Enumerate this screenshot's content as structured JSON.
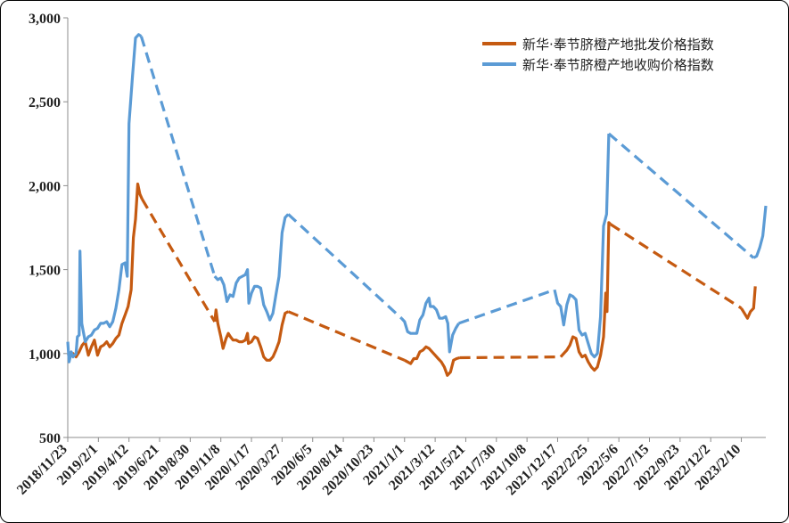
{
  "chart_data": {
    "type": "line",
    "title": "",
    "xlabel": "",
    "ylabel": "",
    "ylim": [
      500,
      3000
    ],
    "yticks": [
      500,
      1000,
      1500,
      2000,
      2500,
      3000
    ],
    "ytick_labels": [
      "500",
      "1,000",
      "1,500",
      "2,000",
      "2,500",
      "3,000"
    ],
    "xtick_labels": [
      "2018/11/23",
      "2019/2/1",
      "2019/4/12",
      "2019/6/21",
      "2019/8/30",
      "2019/11/8",
      "2020/1/17",
      "2020/3/27",
      "2020/6/5",
      "2020/8/14",
      "2020/10/23",
      "2021/1/1",
      "2021/3/12",
      "2021/5/21",
      "2021/7/30",
      "2021/10/8",
      "2021/12/17",
      "2022/2/25",
      "2022/5/6",
      "2022/7/15",
      "2022/9/23",
      "2022/12/2",
      "2023/2/10"
    ],
    "x_range": [
      "2018-11-23",
      "2023-04-07"
    ],
    "grid": false,
    "legend_position": "top-right",
    "series": [
      {
        "name": "新华·奉节脐橙产地批发价格指数",
        "color": "#C55A11",
        "points": [
          [
            "2018-11-23",
            1000
          ],
          [
            "2018-11-28",
            990
          ],
          [
            "2018-12-05",
            1000
          ],
          [
            "2018-12-12",
            980
          ],
          [
            "2018-12-19",
            1010
          ],
          [
            "2018-12-26",
            1050
          ],
          [
            "2019-01-02",
            1070
          ],
          [
            "2019-01-09",
            990
          ],
          [
            "2019-01-16",
            1040
          ],
          [
            "2019-01-23",
            1080
          ],
          [
            "2019-01-30",
            990
          ],
          [
            "2019-02-06",
            1040
          ],
          [
            "2019-02-13",
            1050
          ],
          [
            "2019-02-20",
            1070
          ],
          [
            "2019-02-27",
            1040
          ],
          [
            "2019-03-06",
            1060
          ],
          [
            "2019-03-13",
            1090
          ],
          [
            "2019-03-20",
            1110
          ],
          [
            "2019-03-27",
            1180
          ],
          [
            "2019-04-03",
            1230
          ],
          [
            "2019-04-10",
            1280
          ],
          [
            "2019-04-17",
            1380
          ],
          [
            "2019-04-22",
            1690
          ],
          [
            "2019-04-27",
            1800
          ],
          [
            "2019-05-02",
            2010
          ],
          [
            "2019-05-07",
            1950
          ],
          [
            "2019-05-12",
            1920
          ],
          [
            "2019-10-25",
            1190
          ],
          [
            "2019-10-28",
            1260
          ],
          [
            "2019-11-01",
            1180
          ],
          [
            "2019-11-08",
            1100
          ],
          [
            "2019-11-13",
            1030
          ],
          [
            "2019-11-20",
            1090
          ],
          [
            "2019-11-25",
            1120
          ],
          [
            "2019-11-30",
            1100
          ],
          [
            "2019-12-06",
            1080
          ],
          [
            "2019-12-13",
            1080
          ],
          [
            "2019-12-20",
            1070
          ],
          [
            "2019-12-27",
            1070
          ],
          [
            "2020-01-03",
            1080
          ],
          [
            "2020-01-08",
            1120
          ],
          [
            "2020-01-10",
            1060
          ],
          [
            "2020-01-17",
            1070
          ],
          [
            "2020-01-24",
            1100
          ],
          [
            "2020-01-31",
            1090
          ],
          [
            "2020-02-07",
            1040
          ],
          [
            "2020-02-14",
            980
          ],
          [
            "2020-02-21",
            960
          ],
          [
            "2020-02-28",
            960
          ],
          [
            "2020-03-06",
            980
          ],
          [
            "2020-03-13",
            1020
          ],
          [
            "2020-03-20",
            1070
          ],
          [
            "2020-03-27",
            1170
          ],
          [
            "2020-04-03",
            1240
          ],
          [
            "2020-04-10",
            1250
          ],
          [
            "2021-01-01",
            960
          ],
          [
            "2021-01-08",
            950
          ],
          [
            "2021-01-15",
            940
          ],
          [
            "2021-01-22",
            970
          ],
          [
            "2021-01-29",
            970
          ],
          [
            "2021-02-05",
            1010
          ],
          [
            "2021-02-12",
            1020
          ],
          [
            "2021-02-19",
            1040
          ],
          [
            "2021-02-26",
            1030
          ],
          [
            "2021-03-05",
            1010
          ],
          [
            "2021-03-12",
            990
          ],
          [
            "2021-03-19",
            970
          ],
          [
            "2021-03-26",
            950
          ],
          [
            "2021-04-02",
            920
          ],
          [
            "2021-04-09",
            870
          ],
          [
            "2021-04-16",
            890
          ],
          [
            "2021-04-23",
            960
          ],
          [
            "2021-04-30",
            970
          ],
          [
            "2021-05-07",
            975
          ],
          [
            "2021-12-24",
            980
          ],
          [
            "2021-12-31",
            1000
          ],
          [
            "2022-01-07",
            1020
          ],
          [
            "2022-01-14",
            1050
          ],
          [
            "2022-01-21",
            1100
          ],
          [
            "2022-01-28",
            1090
          ],
          [
            "2022-02-04",
            1010
          ],
          [
            "2022-02-11",
            980
          ],
          [
            "2022-02-18",
            990
          ],
          [
            "2022-02-25",
            950
          ],
          [
            "2022-03-04",
            920
          ],
          [
            "2022-03-11",
            900
          ],
          [
            "2022-03-18",
            920
          ],
          [
            "2022-03-25",
            990
          ],
          [
            "2022-04-01",
            1100
          ],
          [
            "2022-04-06",
            1360
          ],
          [
            "2022-04-09",
            1250
          ],
          [
            "2022-04-13",
            1780
          ],
          [
            "2022-04-17",
            1770
          ],
          [
            "2023-02-10",
            1270
          ],
          [
            "2023-02-17",
            1240
          ],
          [
            "2023-02-24",
            1210
          ],
          [
            "2023-03-03",
            1250
          ],
          [
            "2023-03-10",
            1270
          ],
          [
            "2023-03-14",
            1400
          ]
        ],
        "dashed_segments": [
          [
            [
              "2019-05-12",
              1920
            ],
            [
              "2019-10-25",
              1190
            ]
          ],
          [
            [
              "2020-04-10",
              1250
            ],
            [
              "2021-01-01",
              960
            ]
          ],
          [
            [
              "2021-05-07",
              975
            ],
            [
              "2021-12-24",
              980
            ]
          ],
          [
            [
              "2022-04-17",
              1770
            ],
            [
              "2023-02-10",
              1270
            ]
          ]
        ]
      },
      {
        "name": "新华·奉节脐橙产地收购价格指数",
        "color": "#5B9BD5",
        "points": [
          [
            "2018-11-23",
            1070
          ],
          [
            "2018-11-26",
            950
          ],
          [
            "2018-12-01",
            1010
          ],
          [
            "2018-12-05",
            980
          ],
          [
            "2018-12-12",
            1000
          ],
          [
            "2018-12-15",
            1100
          ],
          [
            "2018-12-19",
            1110
          ],
          [
            "2018-12-21",
            1610
          ],
          [
            "2018-12-25",
            1180
          ],
          [
            "2019-01-02",
            1070
          ],
          [
            "2019-01-09",
            1100
          ],
          [
            "2019-01-16",
            1110
          ],
          [
            "2019-01-23",
            1140
          ],
          [
            "2019-01-30",
            1150
          ],
          [
            "2019-02-06",
            1180
          ],
          [
            "2019-02-13",
            1180
          ],
          [
            "2019-02-20",
            1190
          ],
          [
            "2019-02-27",
            1160
          ],
          [
            "2019-03-06",
            1190
          ],
          [
            "2019-03-13",
            1270
          ],
          [
            "2019-03-20",
            1380
          ],
          [
            "2019-03-27",
            1530
          ],
          [
            "2019-04-03",
            1540
          ],
          [
            "2019-04-08",
            1460
          ],
          [
            "2019-04-12",
            2370
          ],
          [
            "2019-04-20",
            2650
          ],
          [
            "2019-04-27",
            2880
          ],
          [
            "2019-05-04",
            2900
          ],
          [
            "2019-05-10",
            2890
          ],
          [
            "2019-10-25",
            1460
          ],
          [
            "2019-11-01",
            1440
          ],
          [
            "2019-11-08",
            1450
          ],
          [
            "2019-11-15",
            1410
          ],
          [
            "2019-11-22",
            1310
          ],
          [
            "2019-11-29",
            1350
          ],
          [
            "2019-12-06",
            1340
          ],
          [
            "2019-12-13",
            1420
          ],
          [
            "2019-12-20",
            1450
          ],
          [
            "2019-12-27",
            1460
          ],
          [
            "2020-01-03",
            1470
          ],
          [
            "2020-01-08",
            1500
          ],
          [
            "2020-01-11",
            1300
          ],
          [
            "2020-01-17",
            1360
          ],
          [
            "2020-01-24",
            1400
          ],
          [
            "2020-01-31",
            1400
          ],
          [
            "2020-02-07",
            1390
          ],
          [
            "2020-02-14",
            1290
          ],
          [
            "2020-02-21",
            1250
          ],
          [
            "2020-02-28",
            1200
          ],
          [
            "2020-03-06",
            1240
          ],
          [
            "2020-03-13",
            1350
          ],
          [
            "2020-03-20",
            1460
          ],
          [
            "2020-03-27",
            1720
          ],
          [
            "2020-04-03",
            1810
          ],
          [
            "2020-04-10",
            1830
          ],
          [
            "2020-12-25",
            1210
          ],
          [
            "2021-01-01",
            1190
          ],
          [
            "2021-01-08",
            1130
          ],
          [
            "2021-01-15",
            1120
          ],
          [
            "2021-01-22",
            1120
          ],
          [
            "2021-01-29",
            1120
          ],
          [
            "2021-02-05",
            1200
          ],
          [
            "2021-02-12",
            1230
          ],
          [
            "2021-02-19",
            1300
          ],
          [
            "2021-02-26",
            1330
          ],
          [
            "2021-03-01",
            1280
          ],
          [
            "2021-03-08",
            1280
          ],
          [
            "2021-03-15",
            1260
          ],
          [
            "2021-03-22",
            1210
          ],
          [
            "2021-03-29",
            1210
          ],
          [
            "2021-04-05",
            1220
          ],
          [
            "2021-04-10",
            1180
          ],
          [
            "2021-04-14",
            1010
          ],
          [
            "2021-04-21",
            1110
          ],
          [
            "2021-04-28",
            1150
          ],
          [
            "2021-05-05",
            1180
          ],
          [
            "2021-12-10",
            1380
          ],
          [
            "2021-12-17",
            1300
          ],
          [
            "2021-12-24",
            1280
          ],
          [
            "2021-12-31",
            1170
          ],
          [
            "2022-01-07",
            1290
          ],
          [
            "2022-01-14",
            1350
          ],
          [
            "2022-01-21",
            1340
          ],
          [
            "2022-01-28",
            1320
          ],
          [
            "2022-02-04",
            1140
          ],
          [
            "2022-02-11",
            1110
          ],
          [
            "2022-02-18",
            1120
          ],
          [
            "2022-02-25",
            1060
          ],
          [
            "2022-03-04",
            1000
          ],
          [
            "2022-03-11",
            980
          ],
          [
            "2022-03-18",
            1000
          ],
          [
            "2022-03-25",
            1220
          ],
          [
            "2022-04-01",
            1760
          ],
          [
            "2022-04-08",
            1830
          ],
          [
            "2022-04-13",
            2310
          ],
          [
            "2023-03-10",
            1570
          ],
          [
            "2023-03-17",
            1580
          ],
          [
            "2023-03-24",
            1630
          ],
          [
            "2023-03-31",
            1700
          ],
          [
            "2023-04-07",
            1880
          ]
        ],
        "dashed_segments": [
          [
            [
              "2019-05-10",
              2890
            ],
            [
              "2019-10-25",
              1460
            ]
          ],
          [
            [
              "2020-04-10",
              1830
            ],
            [
              "2020-12-25",
              1210
            ]
          ],
          [
            [
              "2021-05-05",
              1180
            ],
            [
              "2021-12-10",
              1380
            ]
          ],
          [
            [
              "2022-04-13",
              2310
            ],
            [
              "2023-03-10",
              1570
            ]
          ]
        ]
      }
    ]
  }
}
